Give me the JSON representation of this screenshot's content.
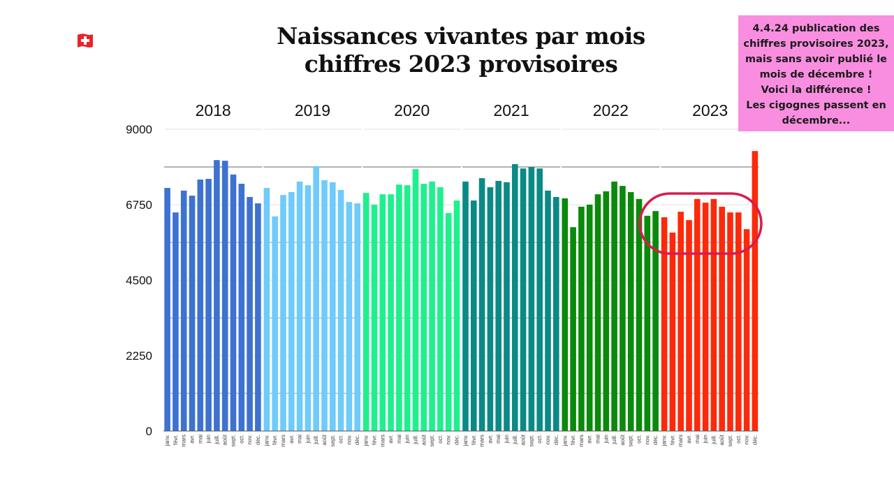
{
  "header": {
    "flag_icon": "swiss-flag",
    "title_line1": "Naissances vivantes par mois",
    "title_line2": "chiffres 2023 provisoires"
  },
  "annotation": {
    "lines": [
      "4.4.24 publication des",
      "chiffres provisoires 2023,",
      "mais sans avoir publié le",
      "mois de décembre !",
      "Voici la différence !",
      "Les cigognes passent en",
      "décembre..."
    ],
    "background": "#f98ee0",
    "highlight_circle_color": "#d81b4f",
    "highlight_target": "2023 janv.–nov."
  },
  "chart_data": {
    "type": "bar",
    "title": "Naissances vivantes par mois — chiffres 2023 provisoires",
    "xlabel": "",
    "ylabel": "",
    "ylim": [
      0,
      9000
    ],
    "yticks": [
      0,
      2250,
      4500,
      6750,
      9000
    ],
    "grid": true,
    "reference_line": 7875,
    "months": [
      "janv.",
      "févr.",
      "mars",
      "avr.",
      "mai",
      "juin",
      "juill.",
      "août",
      "sept.",
      "oct.",
      "nov.",
      "déc."
    ],
    "series": [
      {
        "name": "2018",
        "color": "#3d72d1",
        "values": [
          7250,
          6520,
          7170,
          7020,
          7500,
          7520,
          8080,
          8060,
          7650,
          7375,
          6980,
          6790
        ]
      },
      {
        "name": "2019",
        "color": "#6fcbfb",
        "values": [
          7250,
          6400,
          7040,
          7125,
          7440,
          7330,
          7900,
          7480,
          7420,
          7190,
          6830,
          6790
        ]
      },
      {
        "name": "2020",
        "color": "#1ef08e",
        "values": [
          7100,
          6750,
          7060,
          7060,
          7350,
          7330,
          7810,
          7375,
          7440,
          7270,
          6500,
          6875
        ]
      },
      {
        "name": "2021",
        "color": "#0a8a86",
        "values": [
          7440,
          6875,
          7540,
          7270,
          7460,
          7420,
          7960,
          7830,
          7875,
          7830,
          7170,
          6980
        ]
      },
      {
        "name": "2022",
        "color": "#0a8a0a",
        "values": [
          6940,
          6080,
          6690,
          6750,
          7060,
          7150,
          7440,
          7310,
          7125,
          6920,
          6420,
          6560
        ]
      },
      {
        "name": "2023",
        "color": "#fc2a0a",
        "values": [
          6375,
          5920,
          6540,
          6290,
          6920,
          6810,
          6920,
          6690,
          6520,
          6520,
          6020,
          8350
        ]
      }
    ]
  }
}
